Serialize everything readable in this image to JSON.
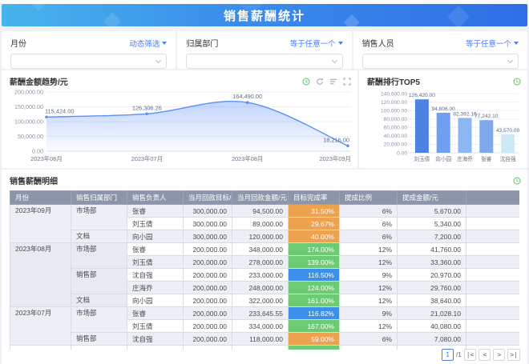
{
  "banner": {
    "title": "销售薪酬统计"
  },
  "filters": {
    "month": {
      "label": "月份",
      "operator": "动态筛选"
    },
    "dept": {
      "label": "归属部门",
      "operator": "等于任意一个"
    },
    "sales": {
      "label": "销售人员",
      "operator": "等于任意一个"
    }
  },
  "colors": {
    "accent_blue": "#4b7bf5",
    "line": "#5b8ff9",
    "rate_orange": "#eca24f",
    "rate_green": "#6dcb76",
    "rate_blue": "#3e8fe9",
    "header_bg": "#8d95a9",
    "icon_green": "#5bbf61",
    "icon_gray": "#9aa0a8",
    "bar_colors": [
      "#4e81e4",
      "#6f9fee",
      "#8cb6f1",
      "#7fa9ec",
      "#cde9f8"
    ]
  },
  "chart_data": [
    {
      "type": "line",
      "title": "薪酬金额趋势/元",
      "x": [
        "2023年06月",
        "2023年07月",
        "2023年08月",
        "2023年09月"
      ],
      "values": [
        115424.0,
        126306.26,
        164490.0,
        18216.0
      ],
      "point_labels": [
        "115,424.00",
        "126,306.26",
        "164,490.00",
        "18,216.00"
      ],
      "ylim": [
        0,
        200000
      ],
      "ytick_step": 50000,
      "ytick_labels": [
        "0.00",
        "50,000.00",
        "100,000.00",
        "150,000.00",
        "200,000.00"
      ],
      "grid": true,
      "legend": "none",
      "area_fill": true
    },
    {
      "type": "bar",
      "title": "薪酬排行TOP5",
      "categories": [
        "刘玉倩",
        "向小园",
        "庄海乔",
        "张睿",
        "沈自强"
      ],
      "values": [
        126420.0,
        94806.0,
        82392.16,
        77242.1,
        43570.0
      ],
      "value_labels": [
        "126,420.00",
        "94,806.00",
        "82,392.16",
        "77,242.10",
        "43,570.00"
      ],
      "ylim": [
        0,
        140000
      ],
      "ytick_step": 20000,
      "ytick_labels": [
        "0.00",
        "20,000.00",
        "40,000.00",
        "60,000.00",
        "80,000.00",
        "100,000.00",
        "120,000.00",
        "140,000.00"
      ],
      "grid": true,
      "legend": "none"
    }
  ],
  "table": {
    "title": "销售薪酬明细",
    "headers": [
      "月份",
      "销售归属部门",
      "销售负责人",
      "当月回款目标/元",
      "当月回款金额/元",
      "目标完成率",
      "提成比例",
      "提成金额/元",
      ""
    ],
    "groups": [
      {
        "month": "2023年09月",
        "depts": [
          {
            "dept": "市场部",
            "rows": [
              {
                "person": "张睿",
                "target": "300,000.00",
                "amount": "94,500.00",
                "rate": "31.50%",
                "rate_color": "orange",
                "ratio": "6%",
                "commission": "5,670.00"
              },
              {
                "person": "刘玉倩",
                "target": "300,000.00",
                "amount": "89,000.00",
                "rate": "29.67%",
                "rate_color": "orange",
                "ratio": "6%",
                "commission": "5,340.00"
              }
            ]
          },
          {
            "dept": "文档",
            "rows": [
              {
                "person": "向小园",
                "target": "300,000.00",
                "amount": "120,000.00",
                "rate": "40.00%",
                "rate_color": "orange",
                "ratio": "6%",
                "commission": "7,200.00"
              }
            ]
          }
        ]
      },
      {
        "month": "2023年08月",
        "depts": [
          {
            "dept": "市场部",
            "rows": [
              {
                "person": "张睿",
                "target": "200,000.00",
                "amount": "348,000.00",
                "rate": "174.00%",
                "rate_color": "green",
                "ratio": "12%",
                "commission": "41,760.00"
              },
              {
                "person": "刘玉倩",
                "target": "200,000.00",
                "amount": "278,000.00",
                "rate": "139.00%",
                "rate_color": "green",
                "ratio": "12%",
                "commission": "33,360.00"
              }
            ]
          },
          {
            "dept": "销售部",
            "rows": [
              {
                "person": "沈自强",
                "target": "200,000.00",
                "amount": "233,000.00",
                "rate": "116.50%",
                "rate_color": "blue",
                "ratio": "9%",
                "commission": "20,970.00"
              },
              {
                "person": "庄海乔",
                "target": "200,000.00",
                "amount": "248,000.00",
                "rate": "124.00%",
                "rate_color": "green",
                "ratio": "12%",
                "commission": "29,760.00"
              }
            ]
          },
          {
            "dept": "文档",
            "rows": [
              {
                "person": "向小园",
                "target": "200,000.00",
                "amount": "322,000.00",
                "rate": "161.00%",
                "rate_color": "green",
                "ratio": "12%",
                "commission": "38,640.00"
              }
            ]
          }
        ]
      },
      {
        "month": "2023年07月",
        "depts": [
          {
            "dept": "市场部",
            "rows": [
              {
                "person": "张睿",
                "target": "200,000.00",
                "amount": "233,645.55",
                "rate": "116.82%",
                "rate_color": "blue",
                "ratio": "9%",
                "commission": "21,028.10"
              },
              {
                "person": "刘玉倩",
                "target": "200,000.00",
                "amount": "334,000.00",
                "rate": "167.00%",
                "rate_color": "green",
                "ratio": "12%",
                "commission": "40,080.00"
              }
            ]
          },
          {
            "dept": "销售部",
            "rows": [
              {
                "person": "沈自强",
                "target": "200,000.00",
                "amount": "118,000.00",
                "rate": "59.00%",
                "rate_color": "orange",
                "ratio": "6%",
                "commission": "7,080.00"
              }
            ]
          }
        ]
      }
    ],
    "partial_row": {
      "rate_color": "green"
    },
    "pagination": {
      "page": "1",
      "total": "/1",
      "first": "|<",
      "prev": "<",
      "next": ">",
      "last": ">|"
    }
  }
}
